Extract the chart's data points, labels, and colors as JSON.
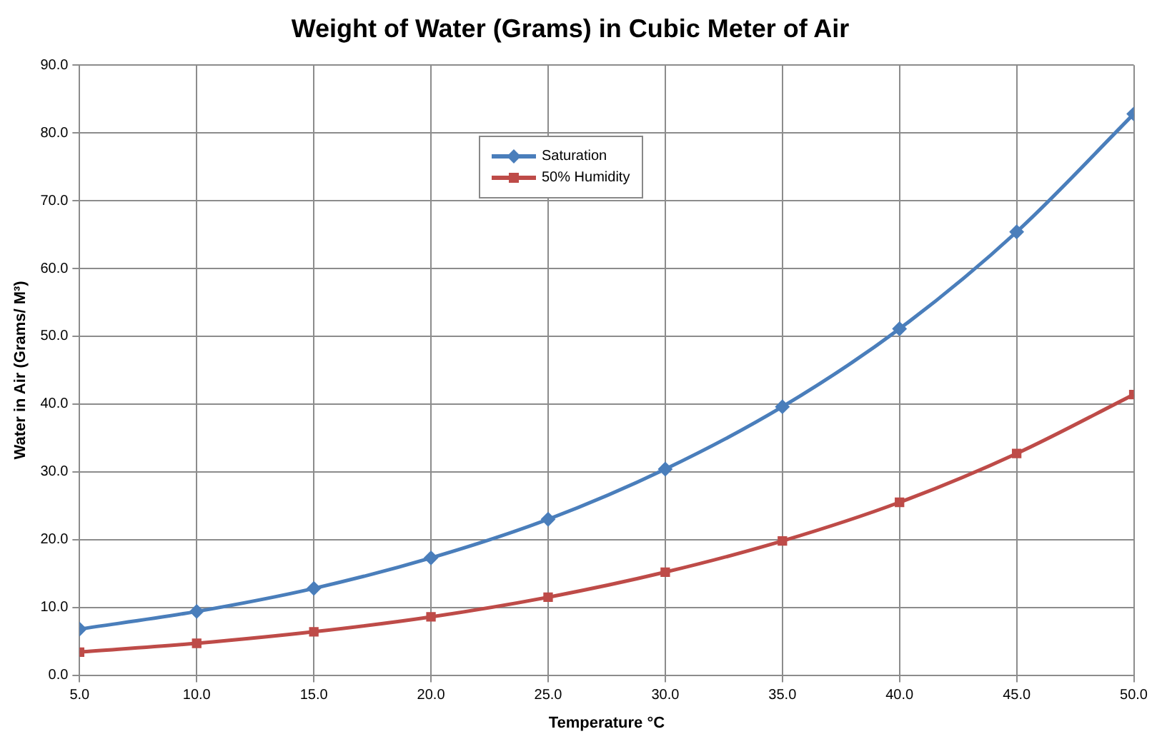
{
  "chart_data": {
    "type": "line",
    "title": "Weight of Water (Grams) in Cubic Meter of Air",
    "xlabel": "Temperature °C",
    "ylabel": "Water in Air (Grams/ M³)",
    "x": [
      5,
      10,
      15,
      20,
      25,
      30,
      35,
      40,
      45,
      50
    ],
    "series": [
      {
        "name": "Saturation",
        "color": "#4a7ebb",
        "marker": "diamond",
        "values": [
          6.8,
          9.4,
          12.8,
          17.3,
          23.0,
          30.4,
          39.6,
          51.1,
          65.4,
          82.8
        ]
      },
      {
        "name": "50% Humidity",
        "color": "#be4b48",
        "marker": "square",
        "values": [
          3.4,
          4.7,
          6.4,
          8.6,
          11.5,
          15.2,
          19.8,
          25.5,
          32.7,
          41.4
        ]
      }
    ],
    "xlim": [
      5,
      50
    ],
    "xticks": [
      {
        "value": 5,
        "label": "5.0"
      },
      {
        "value": 10,
        "label": "10.0"
      },
      {
        "value": 15,
        "label": "15.0"
      },
      {
        "value": 20,
        "label": "20.0"
      },
      {
        "value": 25,
        "label": "25.0"
      },
      {
        "value": 30,
        "label": "30.0"
      },
      {
        "value": 35,
        "label": "35.0"
      },
      {
        "value": 40,
        "label": "40.0"
      },
      {
        "value": 45,
        "label": "45.0"
      },
      {
        "value": 50,
        "label": "50.0"
      }
    ],
    "ylim": [
      0,
      90
    ],
    "yticks": [
      {
        "value": 0,
        "label": "0.0"
      },
      {
        "value": 10,
        "label": "10.0"
      },
      {
        "value": 20,
        "label": "20.0"
      },
      {
        "value": 30,
        "label": "30.0"
      },
      {
        "value": 40,
        "label": "40.0"
      },
      {
        "value": 50,
        "label": "50.0"
      },
      {
        "value": 60,
        "label": "60.0"
      },
      {
        "value": 70,
        "label": "70.0"
      },
      {
        "value": 80,
        "label": "80.0"
      },
      {
        "value": 90,
        "label": "90.0"
      }
    ],
    "grid": true,
    "legend": "top"
  }
}
